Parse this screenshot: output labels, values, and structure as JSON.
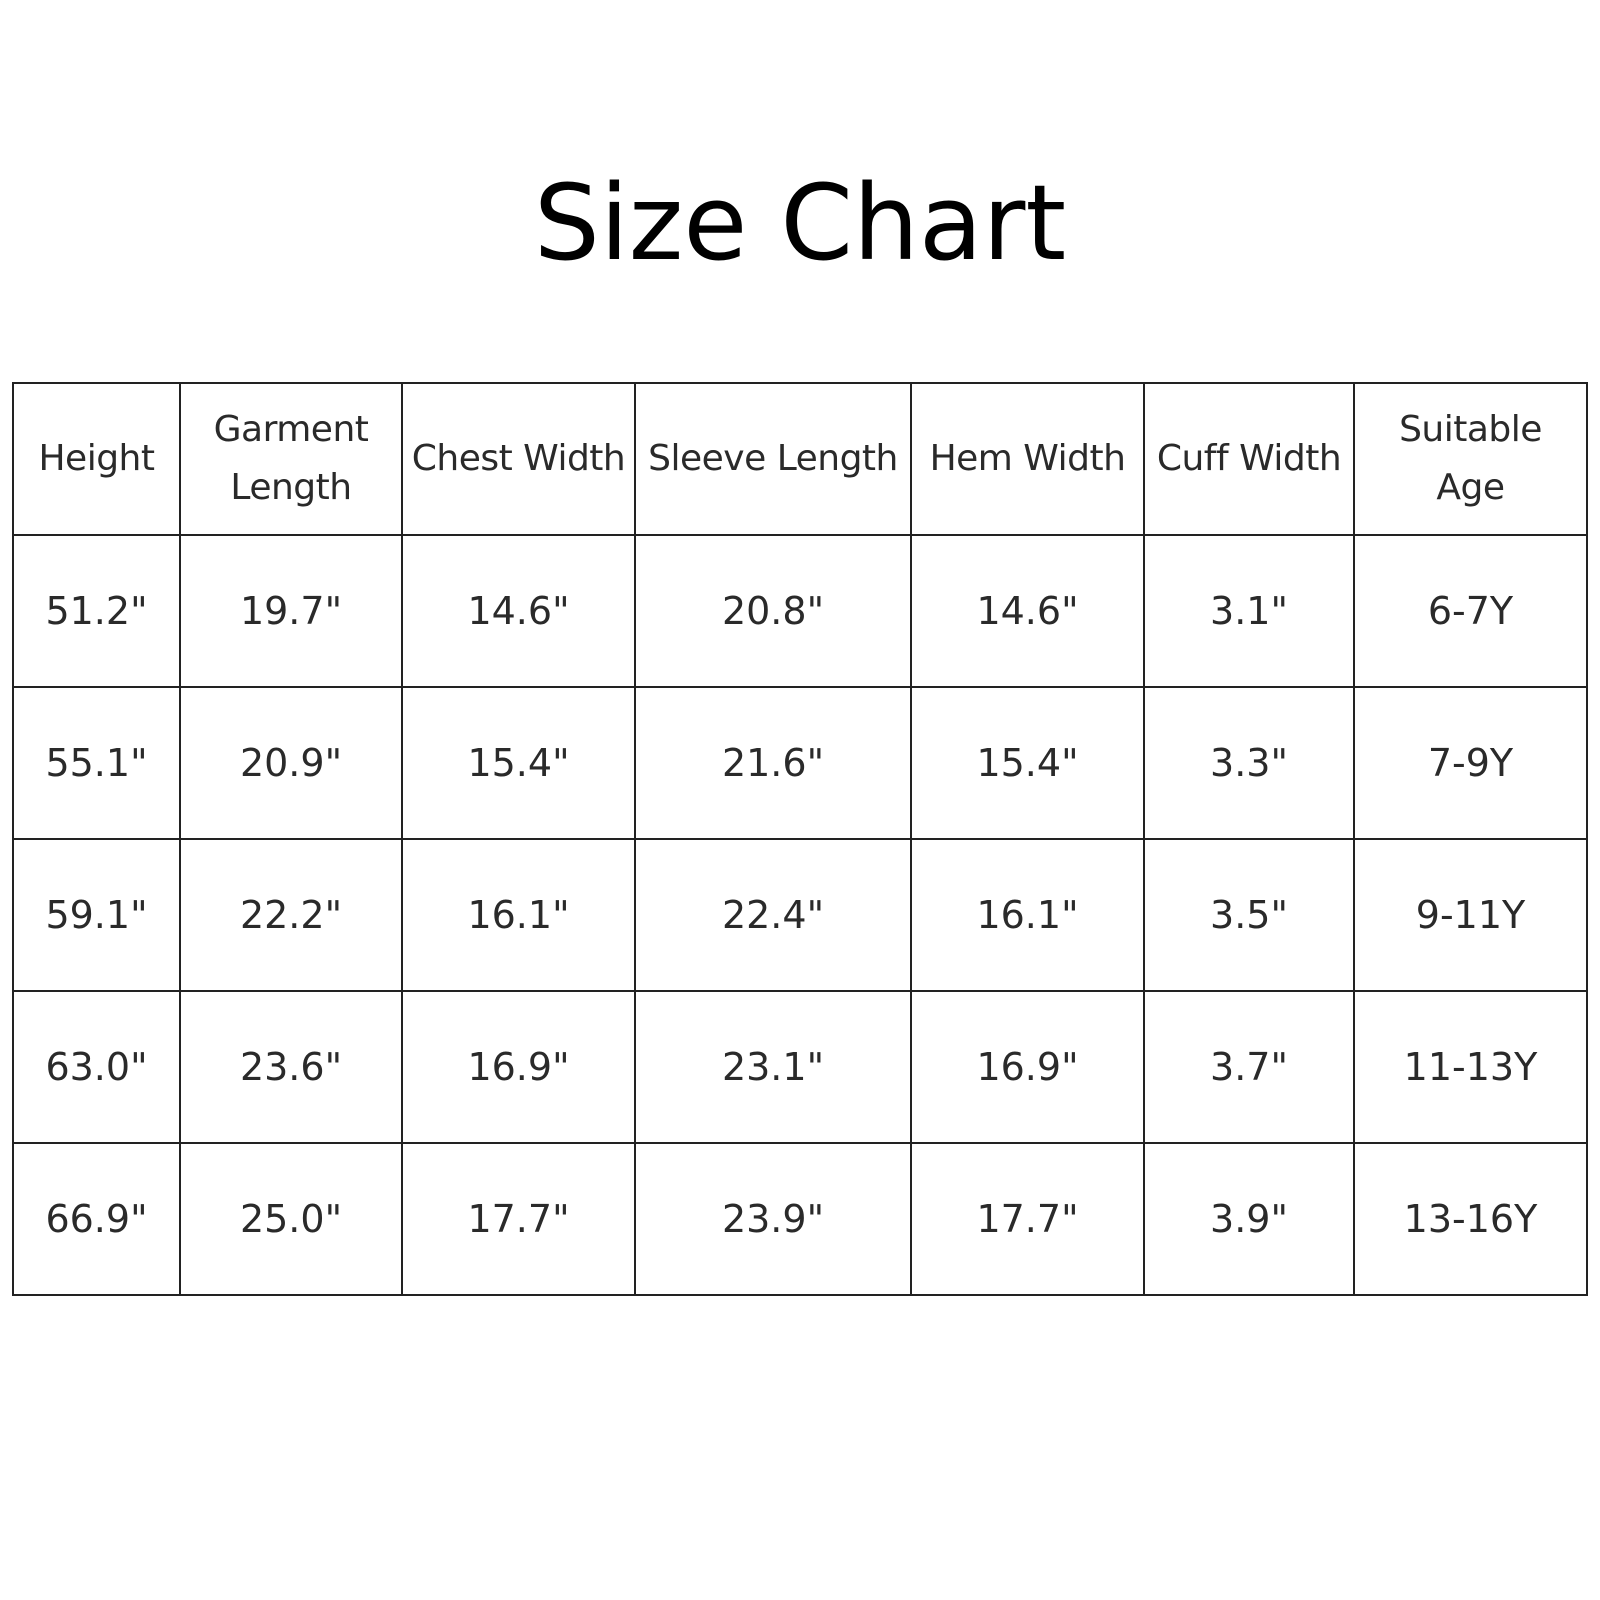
{
  "title": "Size Chart",
  "table": {
    "headers": [
      [
        "Height"
      ],
      [
        "Garment",
        "Length"
      ],
      [
        "Chest Width"
      ],
      [
        "Sleeve Length"
      ],
      [
        "Hem Width"
      ],
      [
        "Cuff Width"
      ],
      [
        "Suitable",
        "Age"
      ]
    ],
    "rows": [
      [
        "51.2\"",
        "19.7\"",
        "14.6\"",
        "20.8\"",
        "14.6\"",
        "3.1\"",
        "6-7Y"
      ],
      [
        "55.1\"",
        "20.9\"",
        "15.4\"",
        "21.6\"",
        "15.4\"",
        "3.3\"",
        "7-9Y"
      ],
      [
        "59.1\"",
        "22.2\"",
        "16.1\"",
        "22.4\"",
        "16.1\"",
        "3.5\"",
        "9-11Y"
      ],
      [
        "63.0\"",
        "23.6\"",
        "16.9\"",
        "23.1\"",
        "16.9\"",
        "3.7\"",
        "11-13Y"
      ],
      [
        "66.9\"",
        "25.0\"",
        "17.7\"",
        "23.9\"",
        "17.7\"",
        "3.9\"",
        "13-16Y"
      ]
    ]
  }
}
